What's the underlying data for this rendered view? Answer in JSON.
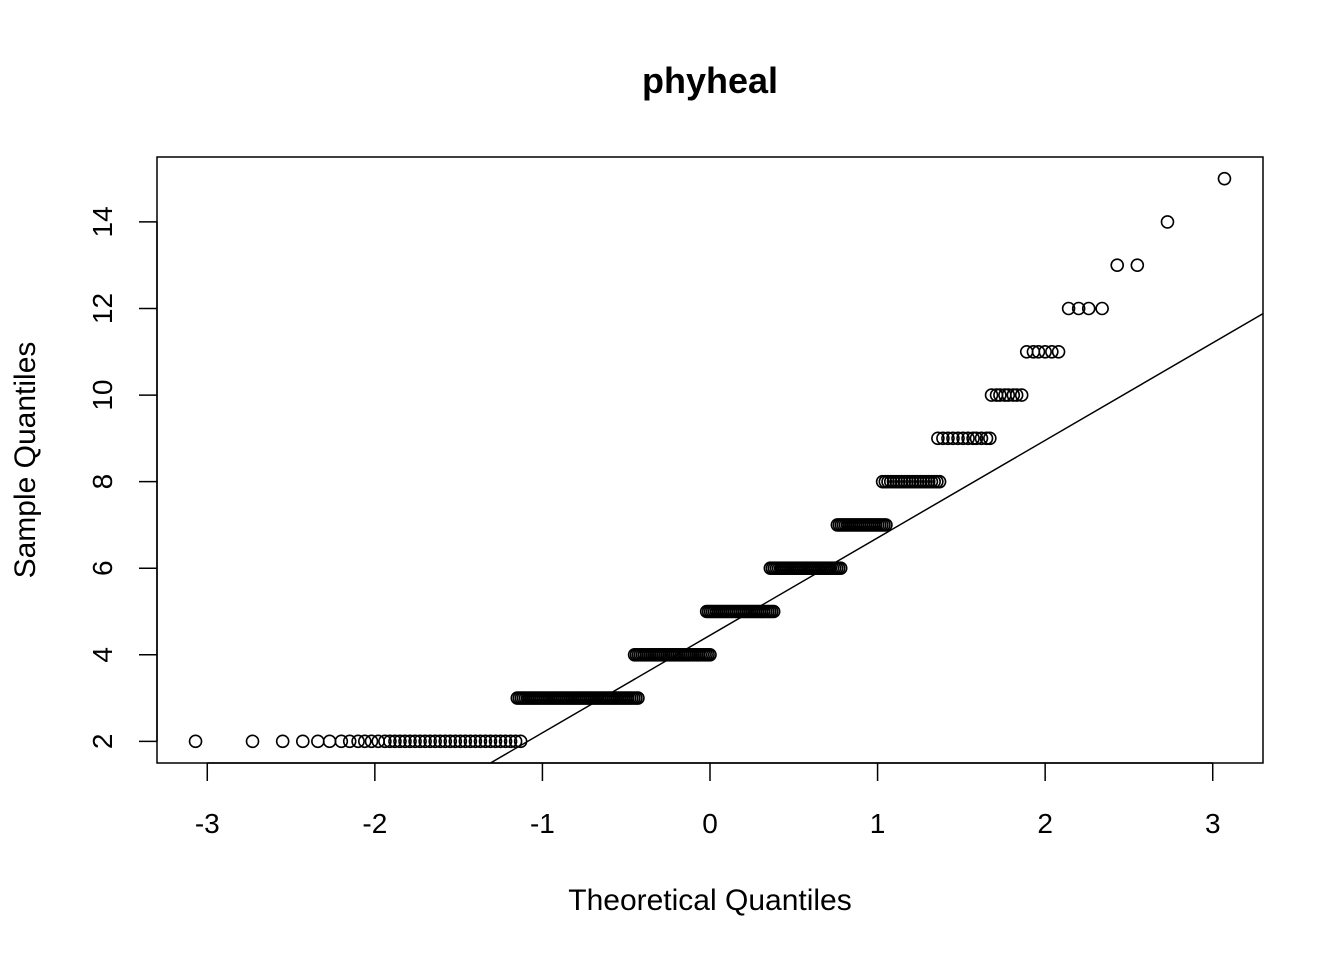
{
  "chart_data": {
    "type": "scatter",
    "title": "phyheal",
    "xlabel": "Theoretical Quantiles",
    "ylabel": "Sample Quantiles",
    "xlim": [
      -3.3,
      3.3
    ],
    "ylim": [
      1.5,
      15.5
    ],
    "x_ticks": [
      -3,
      -2,
      -1,
      0,
      1,
      2,
      3
    ],
    "x_tick_labels": [
      "-3",
      "-2",
      "-1",
      "0",
      "1",
      "2",
      "3"
    ],
    "y_ticks": [
      2,
      4,
      6,
      8,
      10,
      12,
      14
    ],
    "y_tick_labels": [
      "2",
      "4",
      "6",
      "8",
      "10",
      "12",
      "14"
    ],
    "grid": false,
    "marker": "open-circle",
    "reference_line": {
      "slope": 2.252,
      "intercept": 4.45
    },
    "points": [
      {
        "y": 2,
        "x": [
          -3.07,
          -2.73,
          -2.55,
          -2.43,
          -2.34,
          -2.27,
          -2.2,
          -2.15,
          -2.1,
          -2.06,
          -2.02,
          -1.98,
          -1.94,
          -1.91,
          -1.88,
          -1.85,
          -1.82,
          -1.79,
          -1.76,
          -1.73,
          -1.7,
          -1.67,
          -1.64,
          -1.61,
          -1.58,
          -1.55,
          -1.52,
          -1.49,
          -1.46,
          -1.43,
          -1.4,
          -1.37,
          -1.34,
          -1.31,
          -1.28,
          -1.25,
          -1.22,
          -1.19,
          -1.16,
          -1.13
        ]
      },
      {
        "y": 3,
        "x_range": [
          -1.15,
          -0.43
        ],
        "count": 60
      },
      {
        "y": 4,
        "x_range": [
          -0.45,
          0.0
        ],
        "count": 40
      },
      {
        "y": 5,
        "x_range": [
          -0.02,
          0.38
        ],
        "count": 35
      },
      {
        "y": 6,
        "x_range": [
          0.36,
          0.78
        ],
        "count": 35
      },
      {
        "y": 7,
        "x_range": [
          0.76,
          1.05
        ],
        "count": 25
      },
      {
        "y": 8,
        "x_range": [
          1.03,
          1.37
        ],
        "count": 22
      },
      {
        "y": 9,
        "x": [
          1.36,
          1.39,
          1.42,
          1.45,
          1.48,
          1.51,
          1.54,
          1.57,
          1.59,
          1.62,
          1.65,
          1.67
        ]
      },
      {
        "y": 10,
        "x": [
          1.68,
          1.71,
          1.73,
          1.76,
          1.78,
          1.81,
          1.83,
          1.86
        ]
      },
      {
        "y": 11,
        "x": [
          1.89,
          1.93,
          1.96,
          2.0,
          2.04,
          2.08
        ]
      },
      {
        "y": 12,
        "x": [
          2.14,
          2.2,
          2.26,
          2.34
        ]
      },
      {
        "y": 13,
        "x": [
          2.43,
          2.55
        ]
      },
      {
        "y": 14,
        "x": [
          2.73
        ]
      },
      {
        "y": 15,
        "x": [
          3.07
        ]
      }
    ]
  }
}
